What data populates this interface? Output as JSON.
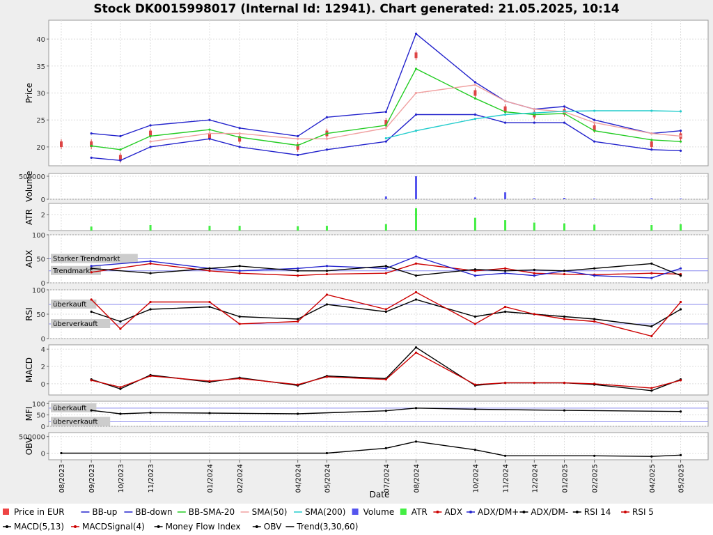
{
  "title": "Stock DK0015998017 (Internal Id: 12941). Chart generated: 21.05.2025, 10:14",
  "chart_data": {
    "type": "line",
    "xlabel": "Date",
    "x_ticks": [
      "08/2023",
      "09/2023",
      "10/2023",
      "11/2023",
      "01/2024",
      "02/2024",
      "04/2024",
      "05/2024",
      "07/2024",
      "08/2024",
      "10/2024",
      "11/2024",
      "12/2024",
      "01/2025",
      "02/2025",
      "04/2025",
      "05/2025"
    ],
    "panels": [
      {
        "id": "price",
        "ylabel": "Price",
        "ylim": [
          16.5,
          43.5
        ],
        "ticks": [
          {
            "v": 20,
            "label": "20"
          },
          {
            "v": 25,
            "label": "25"
          },
          {
            "v": 30,
            "label": "30"
          },
          {
            "v": 35,
            "label": "35"
          },
          {
            "v": 40,
            "label": "40"
          }
        ],
        "series": [
          {
            "name": "Price in EUR",
            "style": "candles",
            "color": "#dd4444",
            "x": [
              "2023-08-01",
              "2023-09-01",
              "2023-10-01",
              "2023-11-01",
              "2024-01-01",
              "2024-02-01",
              "2024-04-01",
              "2024-05-01",
              "2024-07-01",
              "2024-08-01",
              "2024-10-01",
              "2024-11-01",
              "2024-12-01",
              "2025-01-01",
              "2025-02-01",
              "2025-04-01",
              "2025-05-01"
            ],
            "values": [
              20.5,
              20.5,
              18,
              22.5,
              22,
              21.5,
              20,
              22.5,
              24.5,
              37,
              30,
              27,
              26,
              26.5,
              23.5,
              20.5,
              22
            ]
          },
          {
            "name": "BB-up",
            "color": "#2222cc",
            "x": [
              "2023-09-01",
              "2023-10-01",
              "2023-11-01",
              "2024-01-01",
              "2024-02-01",
              "2024-04-01",
              "2024-05-01",
              "2024-07-01",
              "2024-08-01",
              "2024-10-01",
              "2024-11-01",
              "2024-12-01",
              "2025-01-01",
              "2025-02-01",
              "2025-04-01",
              "2025-05-01"
            ],
            "values": [
              22.5,
              22,
              24,
              25,
              23.5,
              22,
              25.5,
              26.5,
              41,
              32,
              28.5,
              27,
              27.5,
              25,
              22.5,
              23
            ]
          },
          {
            "name": "BB-down",
            "color": "#2222cc",
            "x": [
              "2023-09-01",
              "2023-10-01",
              "2023-11-01",
              "2024-01-01",
              "2024-02-01",
              "2024-04-01",
              "2024-05-01",
              "2024-07-01",
              "2024-08-01",
              "2024-10-01",
              "2024-11-01",
              "2024-12-01",
              "2025-01-01",
              "2025-02-01",
              "2025-04-01",
              "2025-05-01"
            ],
            "values": [
              18,
              17.5,
              20,
              21.5,
              20,
              18.5,
              19.5,
              21,
              26,
              26,
              24.5,
              24.5,
              24.5,
              21,
              19.5,
              19.3
            ]
          },
          {
            "name": "BB-SMA-20",
            "color": "#22cc22",
            "x": [
              "2023-09-01",
              "2023-10-01",
              "2023-11-01",
              "2024-01-01",
              "2024-02-01",
              "2024-04-01",
              "2024-05-01",
              "2024-07-01",
              "2024-08-01",
              "2024-10-01",
              "2024-11-01",
              "2024-12-01",
              "2025-01-01",
              "2025-02-01",
              "2025-04-01",
              "2025-05-01"
            ],
            "values": [
              20.2,
              19.5,
              22,
              23.2,
              21.8,
              20.3,
              22.5,
              24,
              34.5,
              29,
              26.5,
              26,
              26.2,
              23,
              21.3,
              21
            ]
          },
          {
            "name": "SMA(50)",
            "color": "#f0a0a0",
            "x": [
              "2023-11-01",
              "2024-01-01",
              "2024-02-01",
              "2024-04-01",
              "2024-05-01",
              "2024-07-01",
              "2024-08-01",
              "2024-10-01",
              "2024-11-01",
              "2024-12-01",
              "2025-01-01",
              "2025-02-01",
              "2025-04-01",
              "2025-05-01"
            ],
            "values": [
              21,
              22.5,
              22.5,
              21.5,
              21.5,
              23.5,
              30,
              31.5,
              28.5,
              27,
              26.5,
              24.5,
              22.5,
              22
            ]
          },
          {
            "name": "SMA(200)",
            "color": "#22cccc",
            "x": [
              "2024-07-01",
              "2024-08-01",
              "2024-10-01",
              "2024-11-01",
              "2024-12-01",
              "2025-01-01",
              "2025-02-01",
              "2025-04-01",
              "2025-05-01"
            ],
            "values": [
              21.6,
              23,
              25.2,
              26,
              26.3,
              26.6,
              26.7,
              26.7,
              26.6
            ]
          }
        ]
      },
      {
        "id": "volume",
        "ylabel": "Volume",
        "ylim": [
          0,
          560000
        ],
        "ticks": [
          {
            "v": 0,
            "label": "0"
          },
          {
            "v": 500000,
            "label": "500000"
          }
        ],
        "series": [
          {
            "name": "Volume",
            "style": "bars",
            "color": "#5555ee",
            "x": [
              "2024-07-01",
              "2024-08-01",
              "2024-10-01",
              "2024-11-01",
              "2024-12-01",
              "2025-01-01",
              "2025-02-01",
              "2025-04-01",
              "2025-05-01"
            ],
            "values": [
              60000,
              500000,
              40000,
              150000,
              20000,
              30000,
              15000,
              20000,
              15000
            ]
          }
        ]
      },
      {
        "id": "atr",
        "ylabel": "ATR",
        "ylim": [
          0,
          3.4
        ],
        "ticks": [
          {
            "v": 2,
            "label": "2"
          }
        ],
        "series": [
          {
            "name": "ATR",
            "style": "bars",
            "color": "#44ee44",
            "x": [
              "2023-09-01",
              "2023-11-01",
              "2024-01-01",
              "2024-02-01",
              "2024-04-01",
              "2024-05-01",
              "2024-07-01",
              "2024-08-01",
              "2024-10-01",
              "2024-11-01",
              "2024-12-01",
              "2025-01-01",
              "2025-02-01",
              "2025-04-01",
              "2025-05-01"
            ],
            "values": [
              0.5,
              0.7,
              0.6,
              0.6,
              0.55,
              0.6,
              0.8,
              2.8,
              1.6,
              1.3,
              1.0,
              0.9,
              0.75,
              0.7,
              0.8
            ]
          }
        ]
      },
      {
        "id": "adx",
        "ylabel": "ADX",
        "ylim": [
          0,
          100
        ],
        "ticks": [
          {
            "v": 0,
            "label": "0"
          },
          {
            "v": 50,
            "label": "50"
          },
          {
            "v": 100,
            "label": "100"
          }
        ],
        "reference_lines": [
          {
            "v": 50,
            "label": "Starker Trendmarkt"
          },
          {
            "v": 25,
            "label": "Trendmarkt"
          }
        ],
        "series": [
          {
            "name": "ADX",
            "color": "#cc0000",
            "x": [
              "2023-09-01",
              "2023-11-01",
              "2024-01-01",
              "2024-02-01",
              "2024-04-01",
              "2024-05-01",
              "2024-07-01",
              "2024-08-01",
              "2024-10-01",
              "2024-11-01",
              "2024-12-01",
              "2025-01-01",
              "2025-02-01",
              "2025-04-01",
              "2025-05-01"
            ],
            "values": [
              22,
              40,
              25,
              20,
              15,
              18,
              20,
              40,
              25,
              30,
              20,
              18,
              17,
              20,
              18
            ]
          },
          {
            "name": "ADX/DM+",
            "color": "#2222cc",
            "x": [
              "2023-09-01",
              "2023-11-01",
              "2024-01-01",
              "2024-02-01",
              "2024-04-01",
              "2024-05-01",
              "2024-07-01",
              "2024-08-01",
              "2024-10-01",
              "2024-11-01",
              "2024-12-01",
              "2025-01-01",
              "2025-02-01",
              "2025-04-01",
              "2025-05-01"
            ],
            "values": [
              35,
              45,
              30,
              25,
              30,
              35,
              30,
              55,
              15,
              20,
              15,
              25,
              15,
              10,
              30
            ]
          },
          {
            "name": "ADX/DM-",
            "color": "#000000",
            "x": [
              "2023-09-01",
              "2023-11-01",
              "2024-01-01",
              "2024-02-01",
              "2024-04-01",
              "2024-05-01",
              "2024-07-01",
              "2024-08-01",
              "2024-10-01",
              "2024-11-01",
              "2024-12-01",
              "2025-01-01",
              "2025-02-01",
              "2025-04-01",
              "2025-05-01"
            ],
            "values": [
              30,
              20,
              30,
              35,
              25,
              25,
              35,
              15,
              28,
              25,
              27,
              25,
              30,
              40,
              15
            ]
          }
        ]
      },
      {
        "id": "rsi",
        "ylabel": "RSI",
        "ylim": [
          0,
          100
        ],
        "ticks": [
          {
            "v": 0,
            "label": "0"
          },
          {
            "v": 50,
            "label": "50"
          },
          {
            "v": 100,
            "label": "100"
          }
        ],
        "reference_lines": [
          {
            "v": 70,
            "label": "überkauft"
          },
          {
            "v": 30,
            "label": "überverkauft"
          }
        ],
        "series": [
          {
            "name": "RSI 14",
            "color": "#000000",
            "x": [
              "2023-09-01",
              "2023-10-01",
              "2023-11-01",
              "2024-01-01",
              "2024-02-01",
              "2024-04-01",
              "2024-05-01",
              "2024-07-01",
              "2024-08-01",
              "2024-10-01",
              "2024-11-01",
              "2024-12-01",
              "2025-01-01",
              "2025-02-01",
              "2025-04-01",
              "2025-05-01"
            ],
            "values": [
              55,
              35,
              60,
              65,
              45,
              40,
              70,
              55,
              80,
              45,
              55,
              50,
              45,
              40,
              25,
              60
            ]
          },
          {
            "name": "RSI 5",
            "color": "#cc0000",
            "x": [
              "2023-09-01",
              "2023-10-01",
              "2023-11-01",
              "2024-01-01",
              "2024-02-01",
              "2024-04-01",
              "2024-05-01",
              "2024-07-01",
              "2024-08-01",
              "2024-10-01",
              "2024-11-01",
              "2024-12-01",
              "2025-01-01",
              "2025-02-01",
              "2025-04-01",
              "2025-05-01"
            ],
            "values": [
              80,
              20,
              75,
              75,
              30,
              35,
              90,
              60,
              95,
              30,
              65,
              50,
              40,
              35,
              5,
              75
            ]
          }
        ]
      },
      {
        "id": "macd",
        "ylabel": "MACD",
        "ylim": [
          -1.3,
          4.5
        ],
        "ticks": [
          {
            "v": 0,
            "label": "0"
          },
          {
            "v": 2,
            "label": "2"
          },
          {
            "v": 4,
            "label": "4"
          }
        ],
        "series": [
          {
            "name": "MACD(5,13)",
            "color": "#000000",
            "x": [
              "2023-09-01",
              "2023-10-01",
              "2023-11-01",
              "2024-01-01",
              "2024-02-01",
              "2024-04-01",
              "2024-05-01",
              "2024-07-01",
              "2024-08-01",
              "2024-10-01",
              "2024-11-01",
              "2024-12-01",
              "2025-01-01",
              "2025-02-01",
              "2025-04-01",
              "2025-05-01"
            ],
            "values": [
              0.5,
              -0.6,
              1.0,
              0.2,
              0.7,
              -0.2,
              0.9,
              0.6,
              4.2,
              -0.2,
              0.1,
              0.1,
              0.1,
              -0.1,
              -0.8,
              0.5
            ]
          },
          {
            "name": "MACDSignal(4)",
            "color": "#cc0000",
            "x": [
              "2023-09-01",
              "2023-10-01",
              "2023-11-01",
              "2024-01-01",
              "2024-02-01",
              "2024-04-01",
              "2024-05-01",
              "2024-07-01",
              "2024-08-01",
              "2024-10-01",
              "2024-11-01",
              "2024-12-01",
              "2025-01-01",
              "2025-02-01",
              "2025-04-01",
              "2025-05-01"
            ],
            "values": [
              0.4,
              -0.4,
              0.9,
              0.3,
              0.6,
              -0.1,
              0.8,
              0.5,
              3.6,
              -0.1,
              0.1,
              0.1,
              0.1,
              0,
              -0.5,
              0.4
            ]
          }
        ]
      },
      {
        "id": "mfi",
        "ylabel": "MFI",
        "ylim": [
          0,
          110
        ],
        "ticks": [
          {
            "v": 0,
            "label": "0"
          },
          {
            "v": 50,
            "label": "50"
          },
          {
            "v": 100,
            "label": "100"
          }
        ],
        "reference_lines": [
          {
            "v": 80,
            "label": "überkauft"
          },
          {
            "v": 20,
            "label": "überverkauft"
          }
        ],
        "series": [
          {
            "name": "Money Flow Index",
            "color": "#000000",
            "x": [
              "2023-09-01",
              "2023-10-01",
              "2023-11-01",
              "2024-01-01",
              "2024-04-01",
              "2024-07-01",
              "2024-08-01",
              "2024-10-01",
              "2025-01-01",
              "2025-05-01"
            ],
            "values": [
              70,
              55,
              60,
              58,
              55,
              68,
              80,
              75,
              70,
              65
            ]
          }
        ]
      },
      {
        "id": "obv",
        "ylabel": "OBV",
        "ylim": [
          -200000,
          620000
        ],
        "ticks": [
          {
            "v": 0,
            "label": "0"
          },
          {
            "v": 500000,
            "label": "500000"
          }
        ],
        "series": [
          {
            "name": "OBV",
            "color": "#000000",
            "x": [
              "2023-08-01",
              "2024-05-01",
              "2024-07-01",
              "2024-08-01",
              "2024-10-01",
              "2024-11-01",
              "2025-02-01",
              "2025-04-01",
              "2025-05-01"
            ],
            "values": [
              0,
              0,
              150000,
              350000,
              100000,
              -80000,
              -80000,
              -100000,
              -60000
            ]
          }
        ]
      }
    ]
  },
  "legend": [
    {
      "label": "Price in EUR",
      "color": "#ee4444",
      "marker": "square"
    },
    {
      "label": "BB-up",
      "color": "#2222cc",
      "marker": "line"
    },
    {
      "label": "BB-down",
      "color": "#2222cc",
      "marker": "line"
    },
    {
      "label": "BB-SMA-20",
      "color": "#22cc22",
      "marker": "line"
    },
    {
      "label": "SMA(50)",
      "color": "#f0a0a0",
      "marker": "line"
    },
    {
      "label": "SMA(200)",
      "color": "#22cccc",
      "marker": "line"
    },
    {
      "label": "Volume",
      "color": "#5555ee",
      "marker": "square"
    },
    {
      "label": "ATR",
      "color": "#44ee44",
      "marker": "square"
    },
    {
      "label": "ADX",
      "color": "#cc0000",
      "marker": "dotline"
    },
    {
      "label": "ADX/DM+",
      "color": "#2222cc",
      "marker": "dotline"
    },
    {
      "label": "ADX/DM-",
      "color": "#000000",
      "marker": "dotline"
    },
    {
      "label": "RSI 14",
      "color": "#000000",
      "marker": "dotline"
    },
    {
      "label": "RSI 5",
      "color": "#cc0000",
      "marker": "dotline"
    },
    {
      "label": "MACD(5,13)",
      "color": "#000000",
      "marker": "dotline"
    },
    {
      "label": "MACDSignal(4)",
      "color": "#cc0000",
      "marker": "dotline"
    },
    {
      "label": "Money Flow Index",
      "color": "#000000",
      "marker": "dotline"
    },
    {
      "label": "OBV",
      "color": "#000000",
      "marker": "dotline"
    },
    {
      "label": "Trend(3,30,60)",
      "color": "#000000",
      "marker": "line"
    }
  ]
}
